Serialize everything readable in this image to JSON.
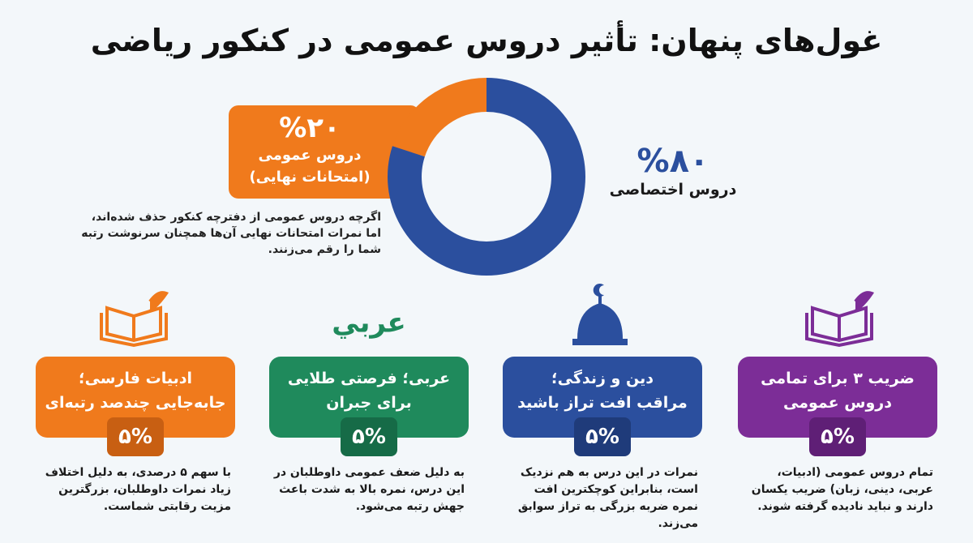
{
  "title": "غول‌های پنهان: تأثیر دروس عمومی در کنکور ریاضی",
  "chart_data": {
    "type": "donut",
    "categories": [
      "دروس عمومی",
      "دروس اختصاصی"
    ],
    "values": [
      20,
      80
    ],
    "value_labels": [
      "%۲۰",
      "%۸۰"
    ],
    "colors": [
      "#f07a1c",
      "#2b4f9e"
    ],
    "annotation": "(امتحانات نهایی)"
  },
  "note": "اگرچه دروس عمومی از دفترچه کنکور حذف شده‌اند، اما نمرات امتحانات نهایی آن‌ها همچنان سرنوشت رتبه شما را رقم می‌زنند.",
  "cards": [
    {
      "title": [
        "ادبیات فارسی؛",
        "جابه‌جایی چندصد رتبه‌ای"
      ],
      "value": "۵%",
      "color": "#f07a1c",
      "badge_color": "#c85f12",
      "description": "با سهم ۵ درصدی، به دلیل اختلاف زیاد نمرات داوطلبان، بزرگترین مزیت رقابتی شماست."
    },
    {
      "title": [
        "عربی؛ فرصتی طلایی",
        "برای جبران"
      ],
      "value": "۵%",
      "color": "#1f8a5c",
      "badge_color": "#166b47",
      "icon_text": "عربي",
      "description": "به دلیل ضعف عمومی داوطلبان در این درس، نمره بالا به شدت باعث جهش رتبه می‌شود."
    },
    {
      "title": [
        "دین و زندگی؛",
        "مراقب افت تراز باشید"
      ],
      "value": "۵%",
      "color": "#2b4f9e",
      "badge_color": "#1f3b7a",
      "description": "نمرات در این درس به هم نزدیک است، بنابراین کوچکترین افت نمره ضربه بزرگی به تراز سوابق می‌زند."
    },
    {
      "title": [
        "ضریب ۳ برای تمامی",
        "دروس عمومی"
      ],
      "value": "۵%",
      "color": "#7c2d97",
      "badge_color": "#5f1f76",
      "description": "تمام دروس عمومی (ادبیات، عربی، دینی، زبان) ضریب یکسان دارند و نباید نادیده گرفته شوند."
    }
  ]
}
